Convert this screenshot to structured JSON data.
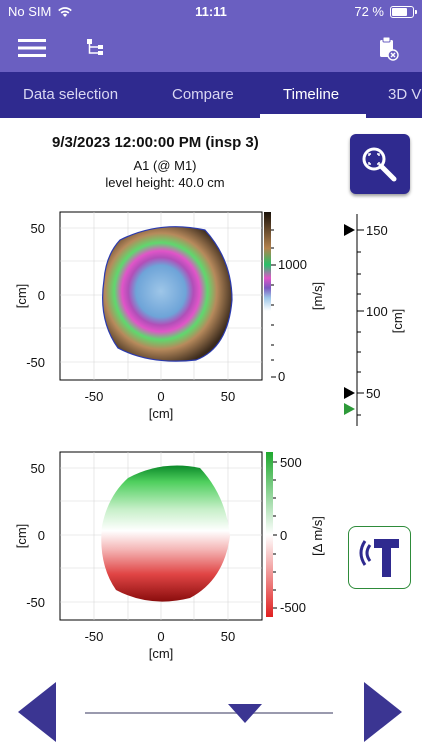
{
  "status_bar": {
    "carrier": "No SIM",
    "time": "11:11",
    "battery": "72 %",
    "battery_level": 0.72
  },
  "toolbar": {
    "menu_icon": "hamburger-menu-icon",
    "tree_icon": "hierarchy-tree-icon",
    "clear_icon": "clipboard-delete-icon"
  },
  "tabs": [
    {
      "label": "Data selection",
      "active": false
    },
    {
      "label": "Compare",
      "active": false
    },
    {
      "label": "Timeline",
      "active": true
    },
    {
      "label": "3D V",
      "active": false
    }
  ],
  "header": {
    "inspection_title": "9/3/2023 12:00:00 PM (insp 3)",
    "location": "A1 (@ M1)",
    "level": "level height: 40.0 cm"
  },
  "plot_top": {
    "x_ticks": [
      "-50",
      "0",
      "50"
    ],
    "y_ticks": [
      "50",
      "0",
      "-50"
    ],
    "xlabel": "[cm]",
    "ylabel": "[cm]",
    "colorbar_ticks": [
      "1000",
      "0"
    ],
    "colorbar_label": "[m/s]"
  },
  "timeline_axis": {
    "ticks": [
      "150",
      "100",
      "50"
    ],
    "label": "[cm]"
  },
  "plot_bottom": {
    "x_ticks": [
      "-50",
      "0",
      "50"
    ],
    "y_ticks": [
      "50",
      "0",
      "-50"
    ],
    "xlabel": "[cm]",
    "ylabel": "[cm]",
    "colorbar_ticks": [
      "500",
      "0",
      "-500"
    ],
    "colorbar_label": "[Δ m/s]"
  },
  "colors": {
    "accent": "#6a5fc1",
    "tab_bar": "#2f2a8f",
    "nav_arrow": "#3b3592",
    "tool_green": "#2e8b3a"
  }
}
